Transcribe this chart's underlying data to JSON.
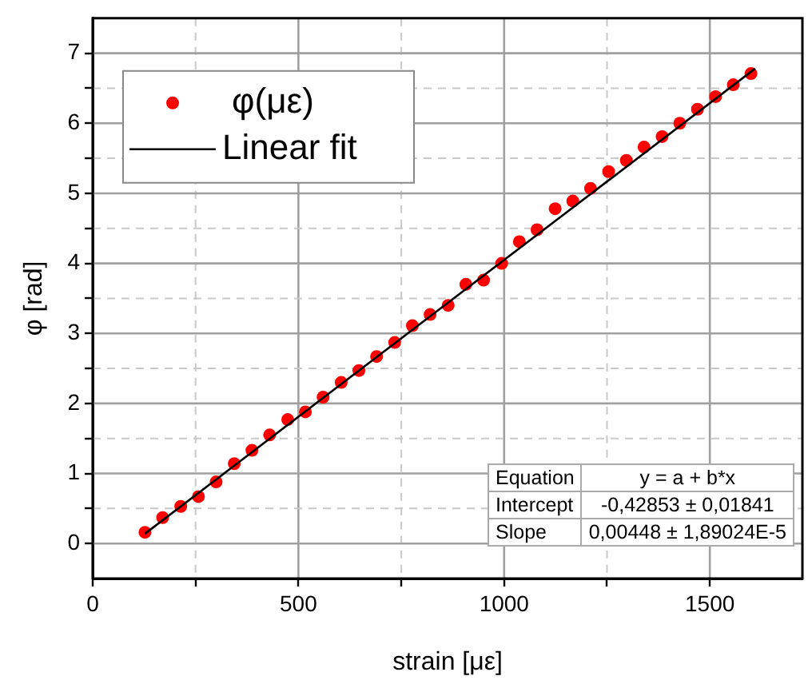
{
  "chart_data": {
    "type": "scatter",
    "xlabel": "strain [με]",
    "ylabel": "φ [rad]",
    "x": [
      127,
      170,
      214,
      257,
      300,
      344,
      387,
      430,
      474,
      517,
      560,
      604,
      647,
      690,
      734,
      777,
      820,
      864,
      907,
      950,
      994,
      1037,
      1080,
      1124,
      1167,
      1210,
      1254,
      1297,
      1340,
      1384,
      1427,
      1470,
      1514,
      1557,
      1600
    ],
    "series": [
      {
        "name": "φ(με)",
        "color": "#ff0000",
        "marker": "circle",
        "values": [
          0.16,
          0.37,
          0.53,
          0.67,
          0.88,
          1.14,
          1.33,
          1.55,
          1.77,
          1.88,
          2.09,
          2.3,
          2.47,
          2.67,
          2.87,
          3.11,
          3.27,
          3.4,
          3.7,
          3.76,
          4.0,
          4.31,
          4.48,
          4.78,
          4.89,
          5.07,
          5.31,
          5.47,
          5.66,
          5.81,
          6.0,
          6.2,
          6.38,
          6.55,
          6.71
        ]
      },
      {
        "name": "Linear fit",
        "type": "line",
        "color": "#000000",
        "marker": "none",
        "line_style": "solid",
        "x": [
          127,
          1610
        ],
        "values": [
          0.14,
          6.78
        ]
      }
    ],
    "xlim": [
      0,
      1725
    ],
    "ylim": [
      -0.5,
      7.5
    ],
    "xticks": [
      0,
      {
        "value": 250,
        "label": null
      },
      500,
      {
        "value": 750,
        "label": null
      },
      1000,
      {
        "value": 1250,
        "label": null
      },
      1500
    ],
    "yticks": [
      0,
      {
        "value": 0.5,
        "label": null
      },
      1,
      {
        "value": 1.5,
        "label": null
      },
      2,
      {
        "value": 2.5,
        "label": null
      },
      3,
      {
        "value": 3.5,
        "label": null
      },
      4,
      {
        "value": 4.5,
        "label": null
      },
      5,
      {
        "value": 5.5,
        "label": null
      },
      6,
      {
        "value": 6.5,
        "label": null
      },
      7
    ],
    "grid": true,
    "legend": "top left",
    "annotations": [
      "Equation",
      "y = a + b*x",
      "Intercept",
      "-0,42853 ± 0,01841",
      "Slope",
      "0,00448 ± 1,89024E-5"
    ]
  }
}
